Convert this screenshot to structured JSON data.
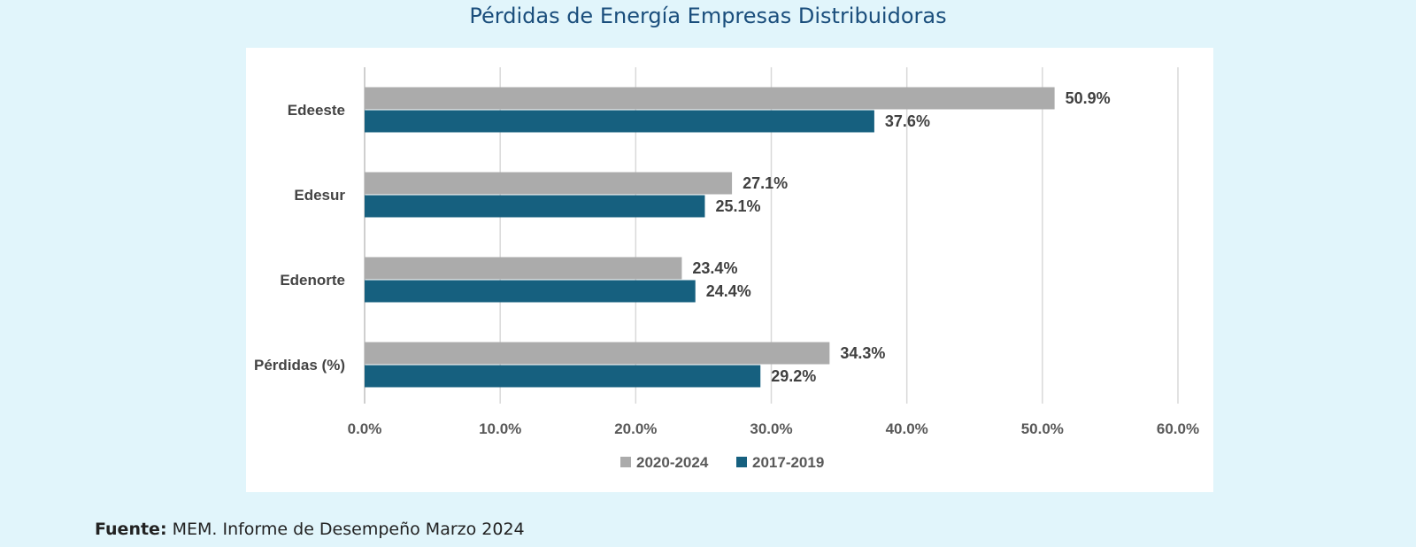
{
  "page": {
    "title": "Pérdidas de Energía Empresas Distribuidoras",
    "source_label": "Fuente:",
    "source_text": "MEM. Informe de Desempeño Marzo 2024"
  },
  "colors": {
    "background": "#e1f5fb",
    "title": "#1a4e7c",
    "series_2020_2024": "#ababab",
    "series_2017_2019": "#16607f"
  },
  "chart_data": {
    "type": "bar",
    "orientation": "horizontal",
    "categories": [
      "Edeeste",
      "Edesur",
      "Edenorte",
      "Pérdidas (%)"
    ],
    "series": [
      {
        "name": "2020-2024",
        "values": [
          50.9,
          27.1,
          23.4,
          34.3
        ],
        "labels": [
          "50.9%",
          "27.1%",
          "23.4%",
          "34.3%"
        ],
        "color": "#ababab"
      },
      {
        "name": "2017-2019",
        "values": [
          37.6,
          25.1,
          24.4,
          29.2
        ],
        "labels": [
          "37.6%",
          "25.1%",
          "24.4%",
          "29.2%"
        ],
        "color": "#16607f"
      }
    ],
    "xlim": [
      0,
      60
    ],
    "xticks": [
      0,
      10,
      20,
      30,
      40,
      50,
      60
    ],
    "xtick_labels": [
      "0.0%",
      "10.0%",
      "20.0%",
      "30.0%",
      "40.0%",
      "50.0%",
      "60.0%"
    ],
    "grid": true,
    "legend_position": "bottom",
    "title": "Pérdidas de Energía Empresas Distribuidoras"
  }
}
